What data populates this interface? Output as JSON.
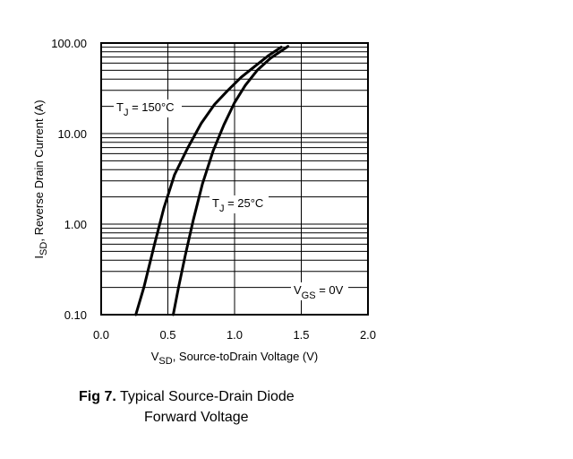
{
  "chart_data": {
    "type": "line",
    "x_axis": {
      "label_main": "V",
      "label_sub": "SD",
      "label_rest": ", Source-toDrain Voltage (V)",
      "lim": [
        0.0,
        2.0
      ],
      "ticks": [
        0.0,
        0.5,
        1.0,
        1.5,
        2.0
      ],
      "tick_labels": [
        "0.0",
        "0.5",
        "1.0",
        "1.5",
        "2.0"
      ]
    },
    "y_axis": {
      "label_main": "I",
      "label_sub": "SD",
      "label_rest": ", Reverse Drain Current (A)",
      "scale": "log",
      "lim": [
        0.1,
        100.0
      ],
      "ticks": [
        0.1,
        1.0,
        10.0,
        100.0
      ],
      "tick_labels": [
        "0.10",
        "1.00",
        "10.00",
        "100.00"
      ]
    },
    "grid": "both",
    "series": [
      {
        "label_main": "T",
        "label_sub": "J",
        "label_rest": " = 150°C",
        "x": [
          0.26,
          0.32,
          0.4,
          0.47,
          0.55,
          0.65,
          0.75,
          0.85,
          0.95,
          1.05,
          1.15,
          1.25,
          1.35
        ],
        "y": [
          0.1,
          0.2,
          0.6,
          1.5,
          3.5,
          7.0,
          13.0,
          21.0,
          30.0,
          42.0,
          55.0,
          72.0,
          90.0
        ]
      },
      {
        "label_main": "T",
        "label_sub": "J",
        "label_rest": " = 25°C",
        "x": [
          0.54,
          0.58,
          0.63,
          0.69,
          0.76,
          0.84,
          0.92,
          1.0,
          1.08,
          1.17,
          1.27,
          1.4
        ],
        "y": [
          0.1,
          0.2,
          0.45,
          1.1,
          2.8,
          6.5,
          12.5,
          22.0,
          34.0,
          50.0,
          68.0,
          92.0
        ]
      }
    ],
    "annotations": [
      {
        "label_main": "V",
        "label_sub": "GS",
        "label_rest": " = 0V"
      }
    ]
  },
  "caption": {
    "fig": "Fig 7.",
    "line1": "Typical Source-Drain Diode",
    "line2": "Forward Voltage"
  }
}
